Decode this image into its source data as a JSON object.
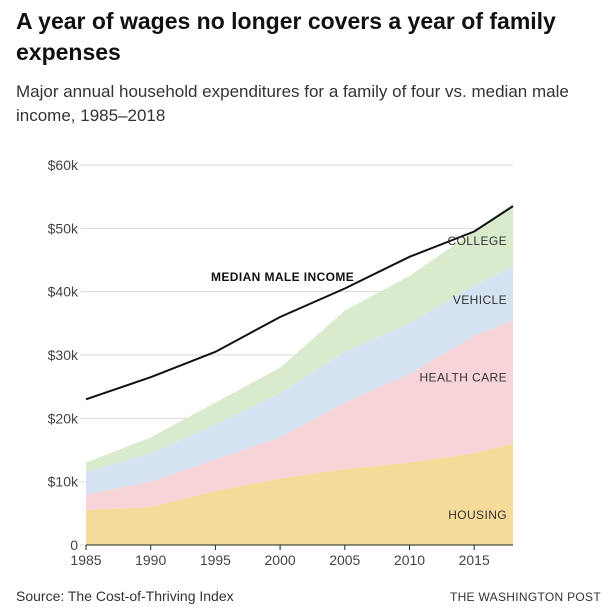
{
  "header": {
    "title": "A year of wages no longer covers a year of family expenses",
    "subtitle": "Major annual household expenditures for a family of four vs. median male income, 1985–2018"
  },
  "footer": {
    "source": "Source: The Cost-of-Thriving Index",
    "credit": "THE WASHINGTON POST"
  },
  "chart_data": {
    "type": "area",
    "stacked": true,
    "x": [
      1985,
      1990,
      1995,
      2000,
      2005,
      2010,
      2015,
      2018
    ],
    "xlim": [
      1985,
      2018
    ],
    "ylim": [
      0,
      60000
    ],
    "x_ticks": [
      1985,
      1990,
      1995,
      2000,
      2005,
      2010,
      2015
    ],
    "x_tick_labels": [
      "1985",
      "1990",
      "1995",
      "2000",
      "2005",
      "2010",
      "2015"
    ],
    "y_ticks": [
      0,
      10000,
      20000,
      30000,
      40000,
      50000,
      60000
    ],
    "y_tick_labels": [
      "0",
      "$10k",
      "$20k",
      "$30k",
      "$40k",
      "$50k",
      "$60k"
    ],
    "grid": "horizontal",
    "series": [
      {
        "name": "HOUSING",
        "color": "#f6dc9a",
        "values": [
          5500,
          6000,
          8500,
          10500,
          12000,
          13000,
          14500,
          16000
        ]
      },
      {
        "name": "HEALTH CARE",
        "color": "#f7d4d8",
        "values": [
          2500,
          4000,
          5000,
          6500,
          10500,
          14000,
          18500,
          19500
        ]
      },
      {
        "name": "VEHICLE",
        "color": "#d4e2f2",
        "values": [
          3500,
          4500,
          5500,
          7000,
          8000,
          8000,
          8000,
          8500
        ]
      },
      {
        "name": "COLLEGE",
        "color": "#d9ebcc",
        "values": [
          1500,
          2500,
          3500,
          4000,
          6500,
          7500,
          8500,
          10000
        ]
      }
    ],
    "lines": [
      {
        "name": "MEDIAN MALE INCOME",
        "color": "#111111",
        "values": [
          23000,
          26500,
          30500,
          36000,
          40500,
          45500,
          49500,
          53500
        ]
      }
    ]
  }
}
